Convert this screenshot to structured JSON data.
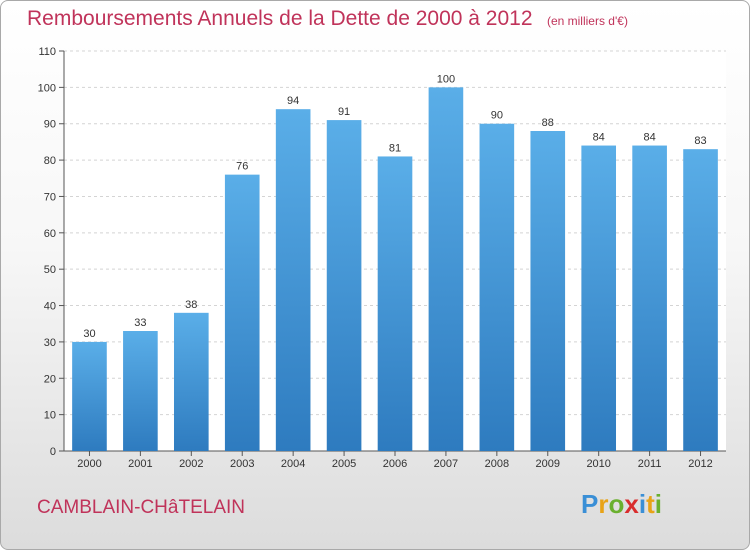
{
  "title": "Remboursements Annuels de la Dette de 2000 à 2012",
  "unit": "(en milliers d'€)",
  "commune": "CAMBLAIN-CHâTELAIN",
  "logo": {
    "letters": [
      {
        "char": "P",
        "color": "#3a8fd6"
      },
      {
        "char": "r",
        "color": "#e8a317"
      },
      {
        "char": "o",
        "color": "#6ab02e"
      },
      {
        "char": "x",
        "color": "#d92d2d"
      },
      {
        "char": "i",
        "color": "#3a8fd6"
      },
      {
        "char": "t",
        "color": "#e8a317"
      },
      {
        "char": "i",
        "color": "#6ab02e"
      }
    ]
  },
  "colors": {
    "bar_top": "#5aaee8",
    "bar_bottom": "#2e7bbf",
    "accent": "#c0335a"
  },
  "chart_data": {
    "type": "bar",
    "title": "Remboursements Annuels de la Dette de 2000 à 2012",
    "xlabel": "",
    "ylabel": "",
    "categories": [
      "2000",
      "2001",
      "2002",
      "2003",
      "2004",
      "2005",
      "2006",
      "2007",
      "2008",
      "2009",
      "2010",
      "2011",
      "2012"
    ],
    "values": [
      30,
      33,
      38,
      76,
      94,
      91,
      81,
      100,
      90,
      88,
      84,
      84,
      83
    ],
    "ylim": [
      0,
      110
    ],
    "yticks": [
      0,
      10,
      20,
      30,
      40,
      50,
      60,
      70,
      80,
      90,
      100,
      110
    ],
    "grid": true,
    "legend": "none"
  }
}
